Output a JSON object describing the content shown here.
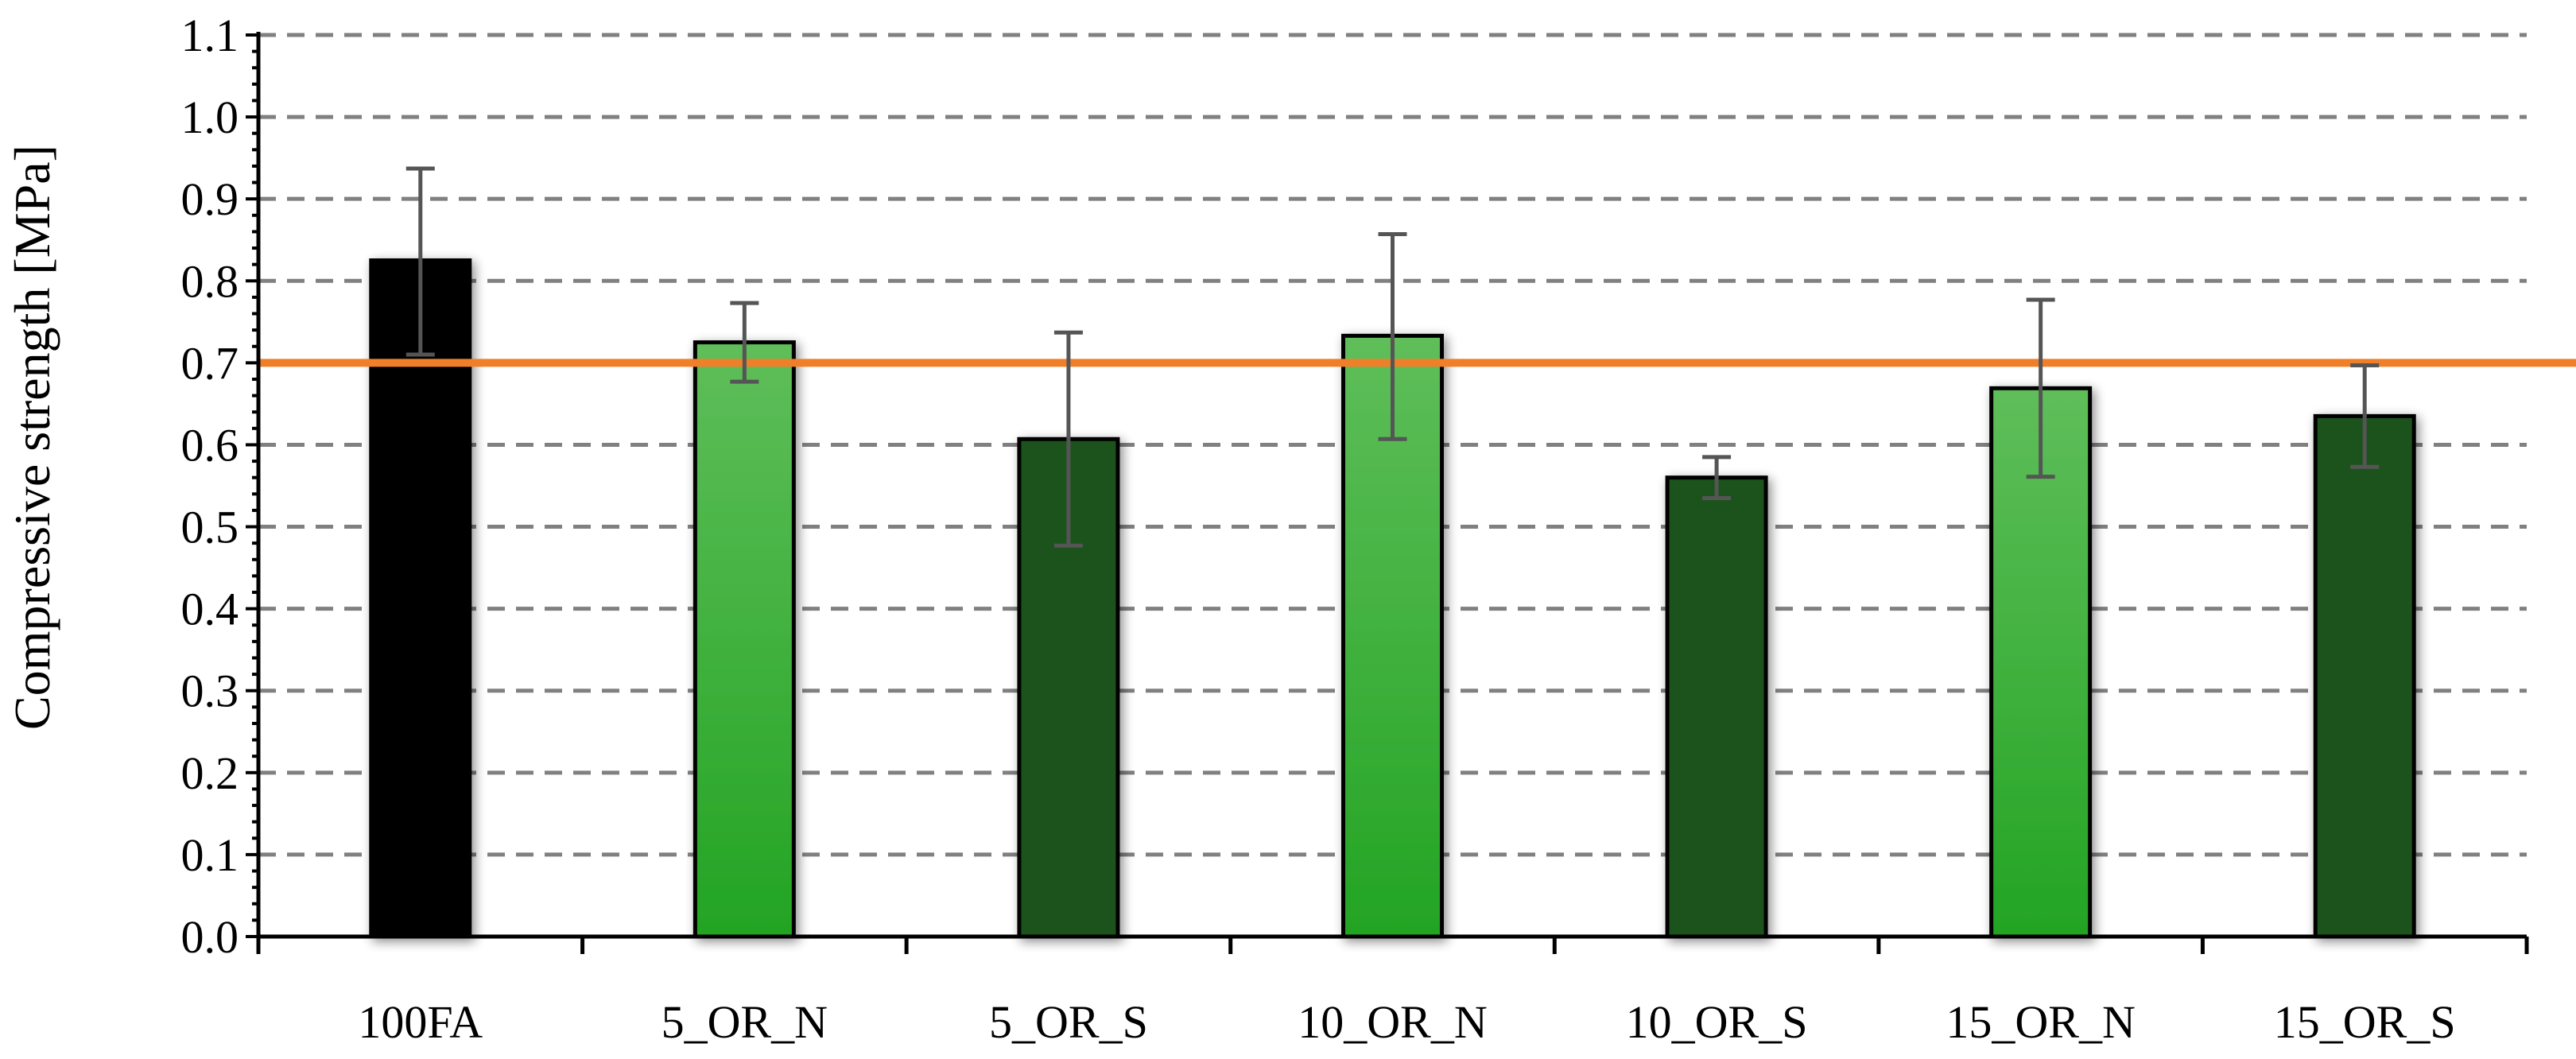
{
  "chart_data": {
    "type": "bar",
    "title": "",
    "xlabel": "",
    "ylabel": "Compressive strength [MPa]",
    "ylim": [
      0,
      1.1
    ],
    "yticks": [
      "0.0",
      "0.1",
      "0.2",
      "0.3",
      "0.4",
      "0.5",
      "0.6",
      "0.7",
      "0.8",
      "0.9",
      "1.0",
      "1.1"
    ],
    "grid": "horizontal dashed",
    "categories": [
      "100FA",
      "5_OR_N",
      "5_OR_S",
      "10_OR_N",
      "10_OR_S",
      "15_OR_N",
      "15_OR_S"
    ],
    "values": [
      0.825,
      0.725,
      0.607,
      0.733,
      0.56,
      0.669,
      0.635
    ],
    "error_low": [
      0.71,
      0.677,
      0.477,
      0.607,
      0.535,
      0.561,
      0.573
    ],
    "error_high": [
      0.937,
      0.773,
      0.737,
      0.857,
      0.585,
      0.777,
      0.697
    ],
    "bar_styles": [
      "black",
      "light-green",
      "dark-green",
      "light-green",
      "dark-green",
      "light-green",
      "dark-green"
    ],
    "reference_line": {
      "value": 0.7,
      "color": "#F07F2A"
    },
    "colors": {
      "black": "#000000",
      "light_green_top": "#5FBE5A",
      "light_green_bottom": "#23A423",
      "dark_green": "#1E521C",
      "error_bar": "#555555",
      "grid": "#808080"
    }
  }
}
